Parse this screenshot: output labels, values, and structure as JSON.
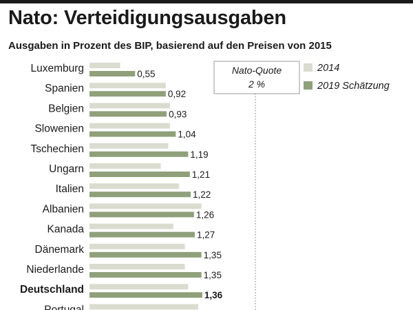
{
  "header": {
    "title": "Nato: Verteidigungsausgaben",
    "subtitle": "Ausgaben in Prozent des BIP, basierend auf den Preisen von 2015"
  },
  "chart_data": {
    "type": "bar",
    "orientation": "horizontal",
    "title": "Nato: Verteidigungsausgaben",
    "subtitle": "Ausgaben in Prozent des BIP, basierend auf den Preisen von 2015",
    "categories": [
      "Luxemburg",
      "Spanien",
      "Belgien",
      "Slowenien",
      "Tschechien",
      "Ungarn",
      "Italien",
      "Albanien",
      "Kanada",
      "Dänemark",
      "Niederlande",
      "Deutschland",
      "Portugal"
    ],
    "highlight_category": "Deutschland",
    "series": [
      {
        "name": "2014",
        "values": [
          0.37,
          0.92,
          0.97,
          0.97,
          0.95,
          0.86,
          1.08,
          1.35,
          1.01,
          1.15,
          1.15,
          1.19,
          1.31
        ]
      },
      {
        "name": "2019 Schätzung",
        "values": [
          0.55,
          0.92,
          0.93,
          1.04,
          1.19,
          1.21,
          1.22,
          1.26,
          1.27,
          1.35,
          1.35,
          1.36,
          null
        ]
      }
    ],
    "value_labels": [
      "0,55",
      "0,92",
      "0,93",
      "1,04",
      "1,19",
      "1,21",
      "1,22",
      "1,26",
      "1,27",
      "1,35",
      "1,35",
      "1,36",
      ""
    ],
    "reference_line": {
      "value": 2,
      "label_line1": "Nato-Quote",
      "label_line2": "2 %"
    },
    "colors": {
      "2014": "#dadcd0",
      "2019 Schätzung": "#8fa07a",
      "reference": "#707070"
    },
    "legend_position": "top-right",
    "xlim": [
      0,
      2.9
    ]
  }
}
